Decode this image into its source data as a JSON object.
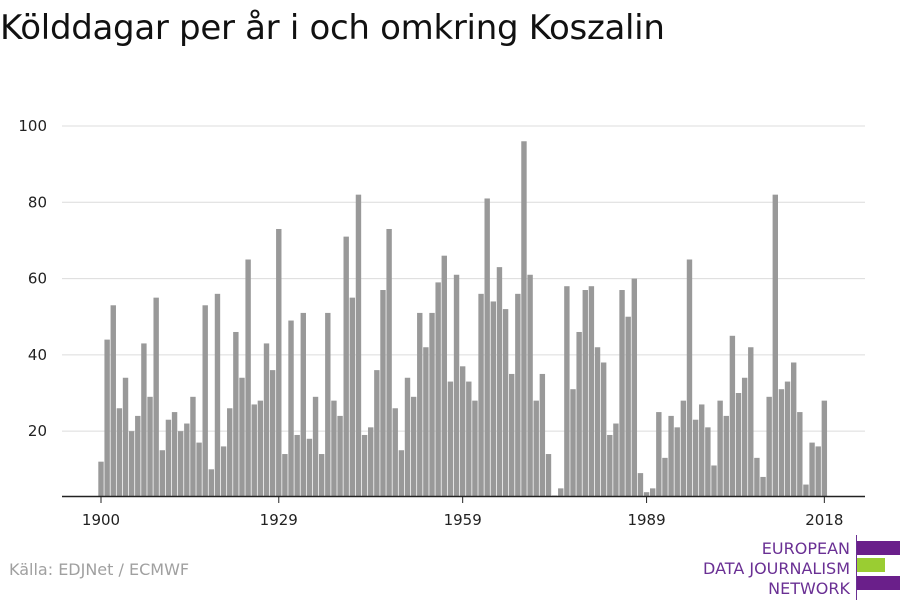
{
  "title": "Kölddagar per år i och omkring Koszalin",
  "source": "Källa: EDJNet / ECMWF",
  "logo": {
    "lines": [
      "EUROPEAN",
      "DATA JOURNALISM",
      "NETWORK"
    ],
    "colors": {
      "text": "#6a3094",
      "bar_purple": "#6a1f8a",
      "bar_green": "#9acd32"
    }
  },
  "chart_data": {
    "type": "bar",
    "title": "Kölddagar per år i och omkring Koszalin",
    "xlabel": "",
    "ylabel": "",
    "ylim": [
      3,
      100
    ],
    "yticks": [
      20,
      40,
      60,
      80,
      100
    ],
    "xticks": [
      1900,
      1929,
      1959,
      1989,
      2018
    ],
    "grid": true,
    "bar_color": "#999999",
    "x_start": 1900,
    "values": [
      12,
      44,
      53,
      26,
      34,
      20,
      24,
      43,
      29,
      55,
      15,
      23,
      25,
      20,
      22,
      29,
      17,
      53,
      10,
      56,
      16,
      26,
      46,
      34,
      65,
      27,
      28,
      43,
      36,
      73,
      14,
      49,
      19,
      51,
      18,
      29,
      14,
      51,
      28,
      24,
      71,
      55,
      82,
      19,
      21,
      36,
      57,
      73,
      26,
      15,
      34,
      29,
      51,
      42,
      51,
      59,
      66,
      33,
      61,
      37,
      33,
      28,
      56,
      81,
      54,
      63,
      52,
      35,
      56,
      96,
      61,
      28,
      35,
      14,
      3,
      5,
      58,
      31,
      46,
      57,
      58,
      42,
      38,
      19,
      22,
      57,
      50,
      60,
      9,
      4,
      5,
      25,
      13,
      24,
      21,
      28,
      65,
      23,
      27,
      21,
      11,
      28,
      24,
      45,
      30,
      34,
      42,
      13,
      8,
      29,
      82,
      31,
      33,
      38,
      25,
      6,
      17,
      16,
      28
    ]
  }
}
